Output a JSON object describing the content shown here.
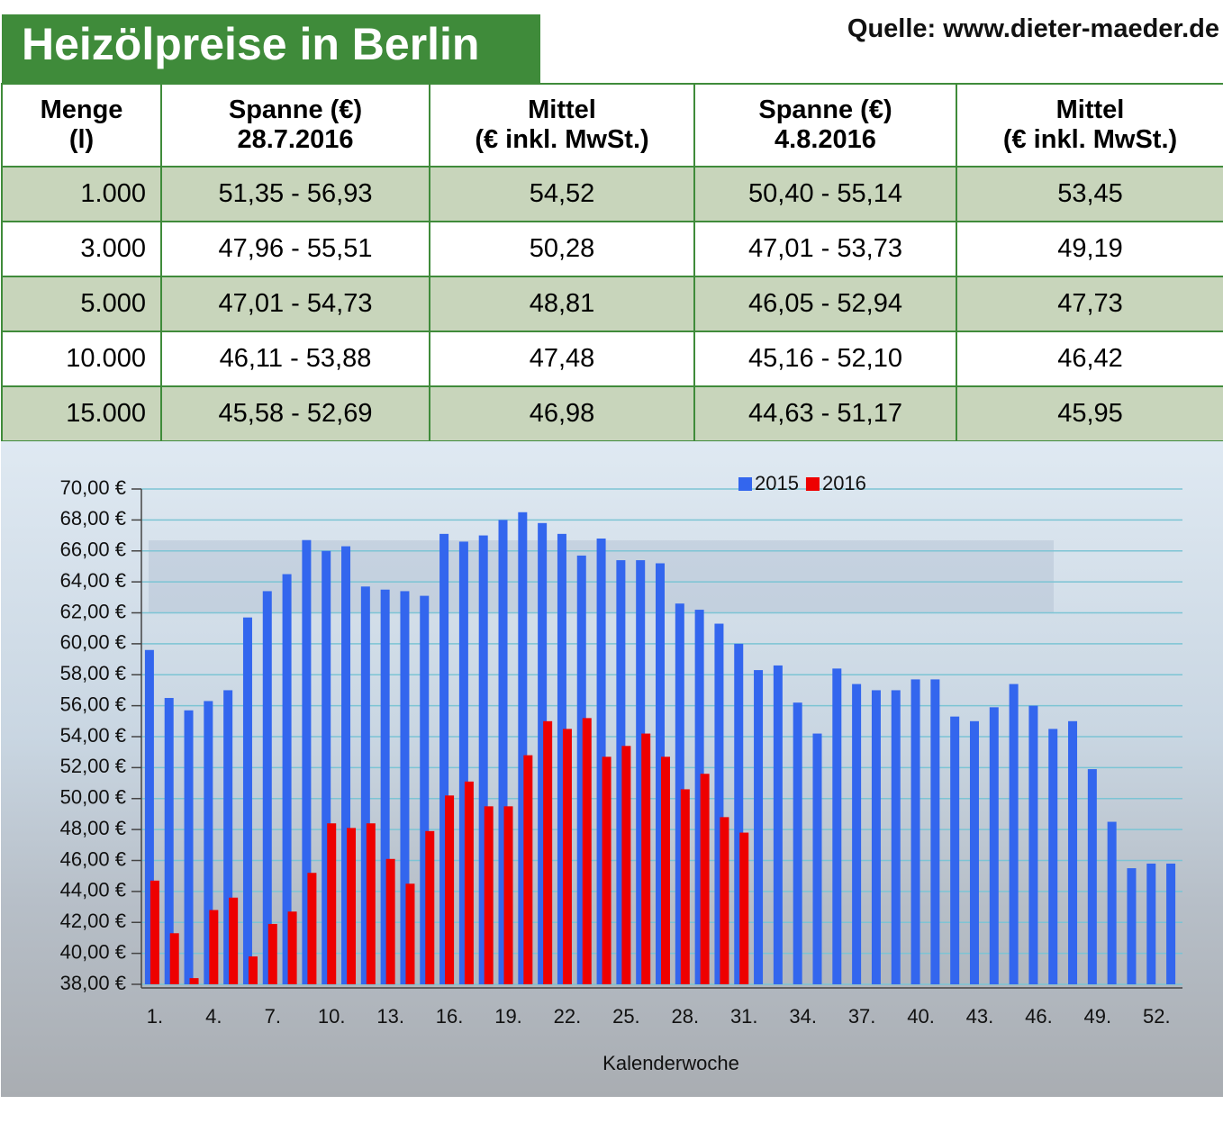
{
  "header": {
    "title": "Heizölpreise in Berlin",
    "source": "Quelle: www.dieter-maeder.de"
  },
  "table": {
    "header": [
      [
        "Menge",
        "(l)"
      ],
      [
        "Spanne (€)",
        "28.7.2016"
      ],
      [
        "Mittel",
        "(€ inkl. MwSt.)"
      ],
      [
        "Spanne (€)",
        "4.8.2016"
      ],
      [
        "Mittel",
        "(€ inkl. MwSt.)"
      ]
    ],
    "rows": [
      [
        "1.000",
        "51,35 - 56,93",
        "54,52",
        "50,40 - 55,14",
        "53,45"
      ],
      [
        "3.000",
        "47,96 - 55,51",
        "50,28",
        "47,01 - 53,73",
        "49,19"
      ],
      [
        "5.000",
        "47,01 - 54,73",
        "48,81",
        "46,05 - 52,94",
        "47,73"
      ],
      [
        "10.000",
        "46,11 - 53,88",
        "47,48",
        "45,16 - 52,10",
        "46,42"
      ],
      [
        "15.000",
        "45,58 - 52,69",
        "46,98",
        "44,63 - 51,17",
        "45,95"
      ]
    ]
  },
  "chart_data": {
    "type": "bar",
    "x_label": "Kalenderwoche",
    "categories": [
      "1.",
      null,
      null,
      "4.",
      null,
      null,
      "7.",
      null,
      null,
      "10.",
      null,
      null,
      "13.",
      null,
      null,
      "16.",
      null,
      null,
      "19.",
      null,
      null,
      "22.",
      null,
      null,
      "25.",
      null,
      null,
      "28.",
      null,
      null,
      "31.",
      null,
      null,
      "34.",
      null,
      null,
      "37.",
      null,
      null,
      "40.",
      null,
      null,
      "43.",
      null,
      null,
      "46.",
      null,
      null,
      "49.",
      null,
      null,
      "52.",
      null
    ],
    "series": [
      {
        "name": "2015",
        "color": "#3366ee",
        "values": [
          59.6,
          56.5,
          55.7,
          56.3,
          57.0,
          61.7,
          63.4,
          64.5,
          66.7,
          66.0,
          66.3,
          63.7,
          63.5,
          63.4,
          63.1,
          67.1,
          66.6,
          67.0,
          68.0,
          68.5,
          67.8,
          67.1,
          65.7,
          66.8,
          65.4,
          65.4,
          65.2,
          62.6,
          62.2,
          61.3,
          60.0,
          58.3,
          58.6,
          56.2,
          54.2,
          58.4,
          57.4,
          57.0,
          57.0,
          57.7,
          57.7,
          55.3,
          55.0,
          55.9,
          57.4,
          56.0,
          54.5,
          55.0,
          51.9,
          48.5,
          45.5,
          45.8,
          45.8
        ]
      },
      {
        "name": "2016",
        "color": "#ee0000",
        "values": [
          44.7,
          41.3,
          38.4,
          42.8,
          43.6,
          39.8,
          41.9,
          42.7,
          45.2,
          48.4,
          48.1,
          48.4,
          46.1,
          44.5,
          47.9,
          50.2,
          51.1,
          49.5,
          49.5,
          52.8,
          55.0,
          54.5,
          55.2,
          52.7,
          53.4,
          54.2,
          52.7,
          50.6,
          51.6,
          48.8,
          47.8,
          null,
          null,
          null,
          null,
          null,
          null,
          null,
          null,
          null,
          null,
          null,
          null,
          null,
          null,
          null,
          null,
          null,
          null,
          null,
          null,
          null,
          null
        ]
      }
    ],
    "ylim": [
      38,
      70
    ],
    "yticks": [
      {
        "value": 38,
        "label": "38,00 €"
      },
      {
        "value": 40,
        "label": "40,00 €"
      },
      {
        "value": 42,
        "label": "42,00 €"
      },
      {
        "value": 44,
        "label": "44,00 €"
      },
      {
        "value": 46,
        "label": "46,00 €"
      },
      {
        "value": 48,
        "label": "48,00 €"
      },
      {
        "value": 50,
        "label": "50,00 €"
      },
      {
        "value": 52,
        "label": "52,00 €"
      },
      {
        "value": 54,
        "label": "54,00 €"
      },
      {
        "value": 56,
        "label": "56,00 €"
      },
      {
        "value": 58,
        "label": "58,00 €"
      },
      {
        "value": 60,
        "label": "60,00 €"
      },
      {
        "value": 62,
        "label": "62,00 €"
      },
      {
        "value": 64,
        "label": "64,00 €"
      },
      {
        "value": 66,
        "label": "66,00 €"
      },
      {
        "value": 68,
        "label": "68,00 €"
      },
      {
        "value": 70,
        "label": "70,00 €"
      }
    ],
    "grid": true,
    "legend": "top"
  }
}
